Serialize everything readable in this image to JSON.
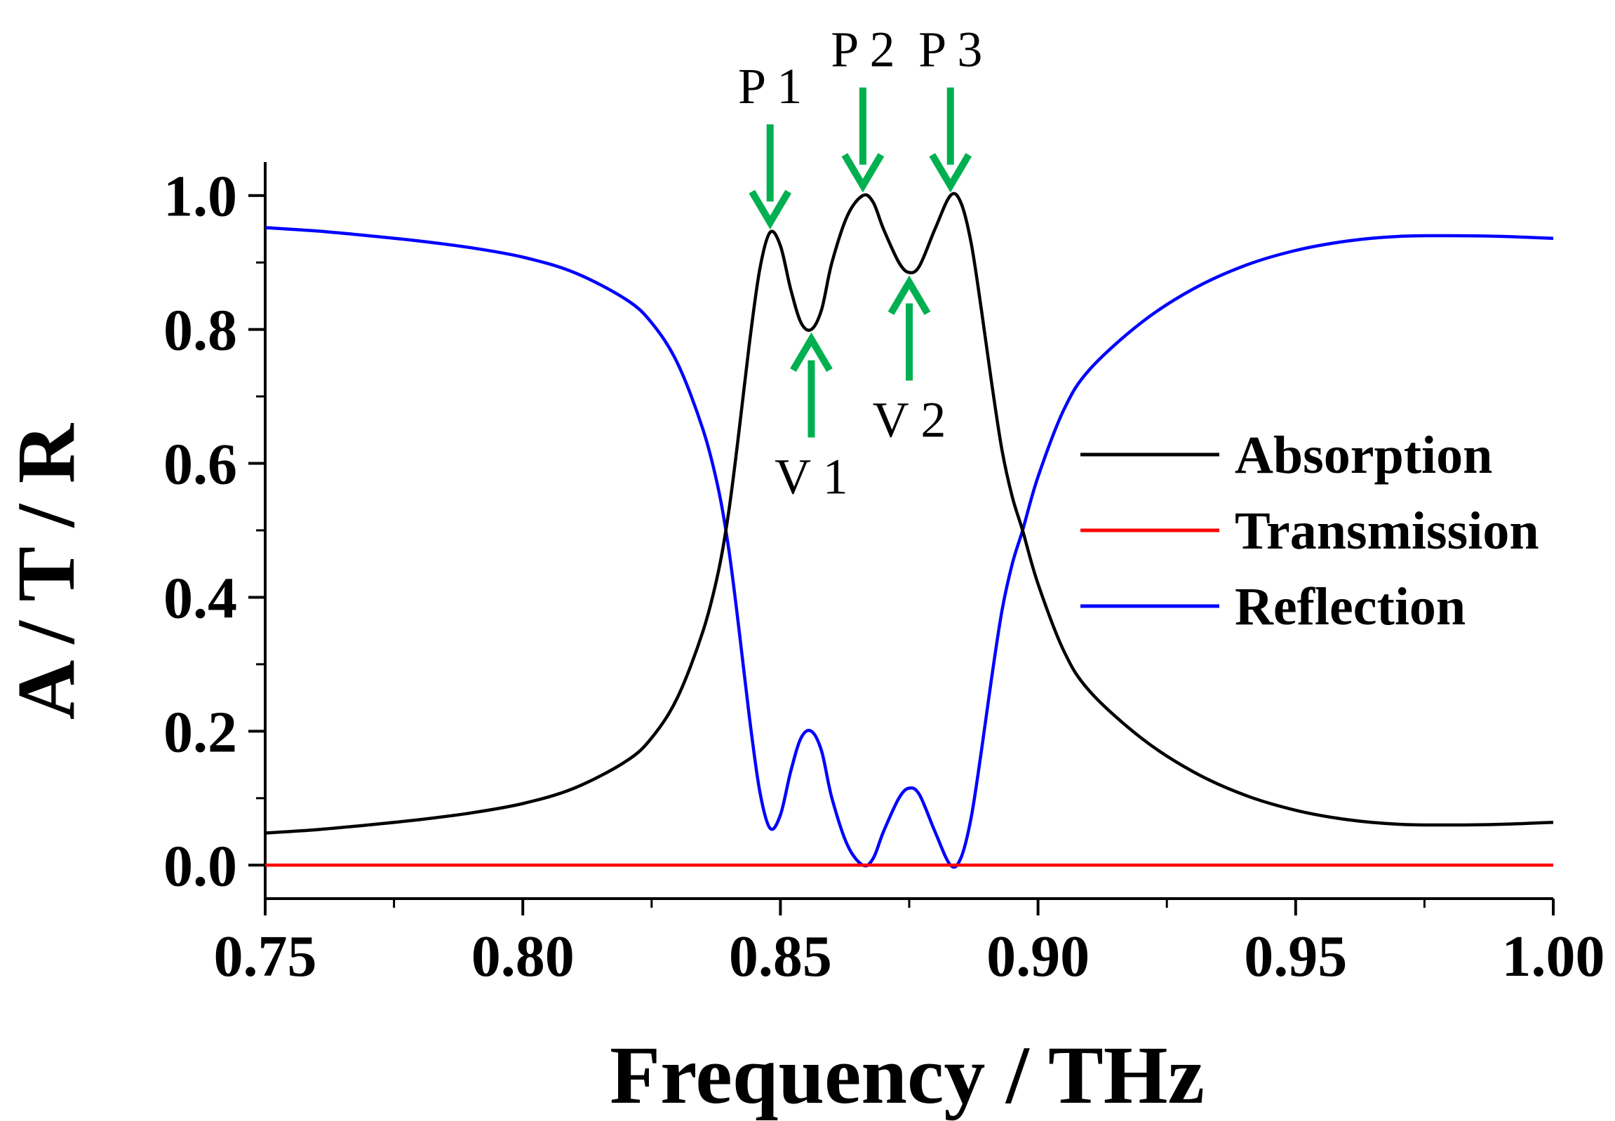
{
  "chart_data": {
    "type": "line",
    "title": "",
    "xlabel": "Frequency / THz",
    "ylabel": "A / T / R",
    "xlim": [
      0.75,
      1.0
    ],
    "ylim": [
      -0.05,
      1.05
    ],
    "x_ticks": [
      "0.75",
      "0.80",
      "0.85",
      "0.90",
      "0.95",
      "1.00"
    ],
    "y_ticks": [
      "0.0",
      "0.2",
      "0.4",
      "0.6",
      "0.8",
      "1.0"
    ],
    "grid": false,
    "legend_position": "right-middle",
    "series": [
      {
        "name": "Absorption",
        "color": "#000000",
        "points": [
          [
            0.75,
            0.048
          ],
          [
            0.76,
            0.053
          ],
          [
            0.77,
            0.06
          ],
          [
            0.78,
            0.068
          ],
          [
            0.79,
            0.078
          ],
          [
            0.8,
            0.092
          ],
          [
            0.81,
            0.115
          ],
          [
            0.82,
            0.155
          ],
          [
            0.825,
            0.19
          ],
          [
            0.83,
            0.25
          ],
          [
            0.835,
            0.35
          ],
          [
            0.838,
            0.44
          ],
          [
            0.84,
            0.53
          ],
          [
            0.842,
            0.65
          ],
          [
            0.844,
            0.78
          ],
          [
            0.846,
            0.89
          ],
          [
            0.848,
            0.945
          ],
          [
            0.85,
            0.925
          ],
          [
            0.852,
            0.86
          ],
          [
            0.854,
            0.81
          ],
          [
            0.856,
            0.8
          ],
          [
            0.858,
            0.83
          ],
          [
            0.86,
            0.9
          ],
          [
            0.863,
            0.97
          ],
          [
            0.866,
            1.0
          ],
          [
            0.868,
            0.99
          ],
          [
            0.87,
            0.95
          ],
          [
            0.873,
            0.9
          ],
          [
            0.875,
            0.885
          ],
          [
            0.877,
            0.895
          ],
          [
            0.88,
            0.95
          ],
          [
            0.883,
            1.0
          ],
          [
            0.885,
            0.99
          ],
          [
            0.887,
            0.93
          ],
          [
            0.889,
            0.83
          ],
          [
            0.891,
            0.72
          ],
          [
            0.893,
            0.62
          ],
          [
            0.895,
            0.55
          ],
          [
            0.897,
            0.5
          ],
          [
            0.9,
            0.42
          ],
          [
            0.905,
            0.32
          ],
          [
            0.91,
            0.26
          ],
          [
            0.92,
            0.19
          ],
          [
            0.93,
            0.14
          ],
          [
            0.94,
            0.105
          ],
          [
            0.95,
            0.082
          ],
          [
            0.96,
            0.068
          ],
          [
            0.97,
            0.061
          ],
          [
            0.98,
            0.06
          ],
          [
            0.99,
            0.061
          ],
          [
            1.0,
            0.064
          ]
        ]
      },
      {
        "name": "Transmission",
        "color": "#ff0000",
        "points": [
          [
            0.75,
            0.0
          ],
          [
            1.0,
            0.0
          ]
        ]
      },
      {
        "name": "Reflection",
        "color": "#0000ff",
        "points": [
          [
            0.75,
            0.952
          ],
          [
            0.76,
            0.947
          ],
          [
            0.77,
            0.94
          ],
          [
            0.78,
            0.932
          ],
          [
            0.79,
            0.922
          ],
          [
            0.8,
            0.908
          ],
          [
            0.81,
            0.885
          ],
          [
            0.82,
            0.845
          ],
          [
            0.825,
            0.81
          ],
          [
            0.83,
            0.75
          ],
          [
            0.835,
            0.65
          ],
          [
            0.838,
            0.56
          ],
          [
            0.84,
            0.47
          ],
          [
            0.842,
            0.35
          ],
          [
            0.844,
            0.22
          ],
          [
            0.846,
            0.11
          ],
          [
            0.848,
            0.055
          ],
          [
            0.85,
            0.075
          ],
          [
            0.852,
            0.14
          ],
          [
            0.854,
            0.19
          ],
          [
            0.856,
            0.2
          ],
          [
            0.858,
            0.17
          ],
          [
            0.86,
            0.1
          ],
          [
            0.863,
            0.03
          ],
          [
            0.866,
            0.0
          ],
          [
            0.868,
            0.01
          ],
          [
            0.87,
            0.05
          ],
          [
            0.873,
            0.1
          ],
          [
            0.875,
            0.115
          ],
          [
            0.877,
            0.105
          ],
          [
            0.88,
            0.05
          ],
          [
            0.883,
            0.0
          ],
          [
            0.885,
            0.01
          ],
          [
            0.887,
            0.07
          ],
          [
            0.889,
            0.17
          ],
          [
            0.891,
            0.28
          ],
          [
            0.893,
            0.38
          ],
          [
            0.895,
            0.45
          ],
          [
            0.897,
            0.5
          ],
          [
            0.9,
            0.58
          ],
          [
            0.905,
            0.68
          ],
          [
            0.91,
            0.74
          ],
          [
            0.92,
            0.81
          ],
          [
            0.93,
            0.86
          ],
          [
            0.94,
            0.895
          ],
          [
            0.95,
            0.918
          ],
          [
            0.96,
            0.932
          ],
          [
            0.97,
            0.939
          ],
          [
            0.98,
            0.94
          ],
          [
            0.99,
            0.939
          ],
          [
            1.0,
            0.936
          ]
        ]
      }
    ],
    "annotations": [
      {
        "label": "P 1",
        "x": 0.848,
        "y": 0.945,
        "direction": "down",
        "color": "#00b050"
      },
      {
        "label": "P 2",
        "x": 0.866,
        "y": 1.0,
        "direction": "down",
        "color": "#00b050"
      },
      {
        "label": "P 3",
        "x": 0.883,
        "y": 1.0,
        "direction": "down",
        "color": "#00b050"
      },
      {
        "label": "V 1",
        "x": 0.856,
        "y": 0.8,
        "direction": "up",
        "color": "#00b050"
      },
      {
        "label": "V 2",
        "x": 0.875,
        "y": 0.885,
        "direction": "up",
        "color": "#00b050"
      }
    ]
  }
}
